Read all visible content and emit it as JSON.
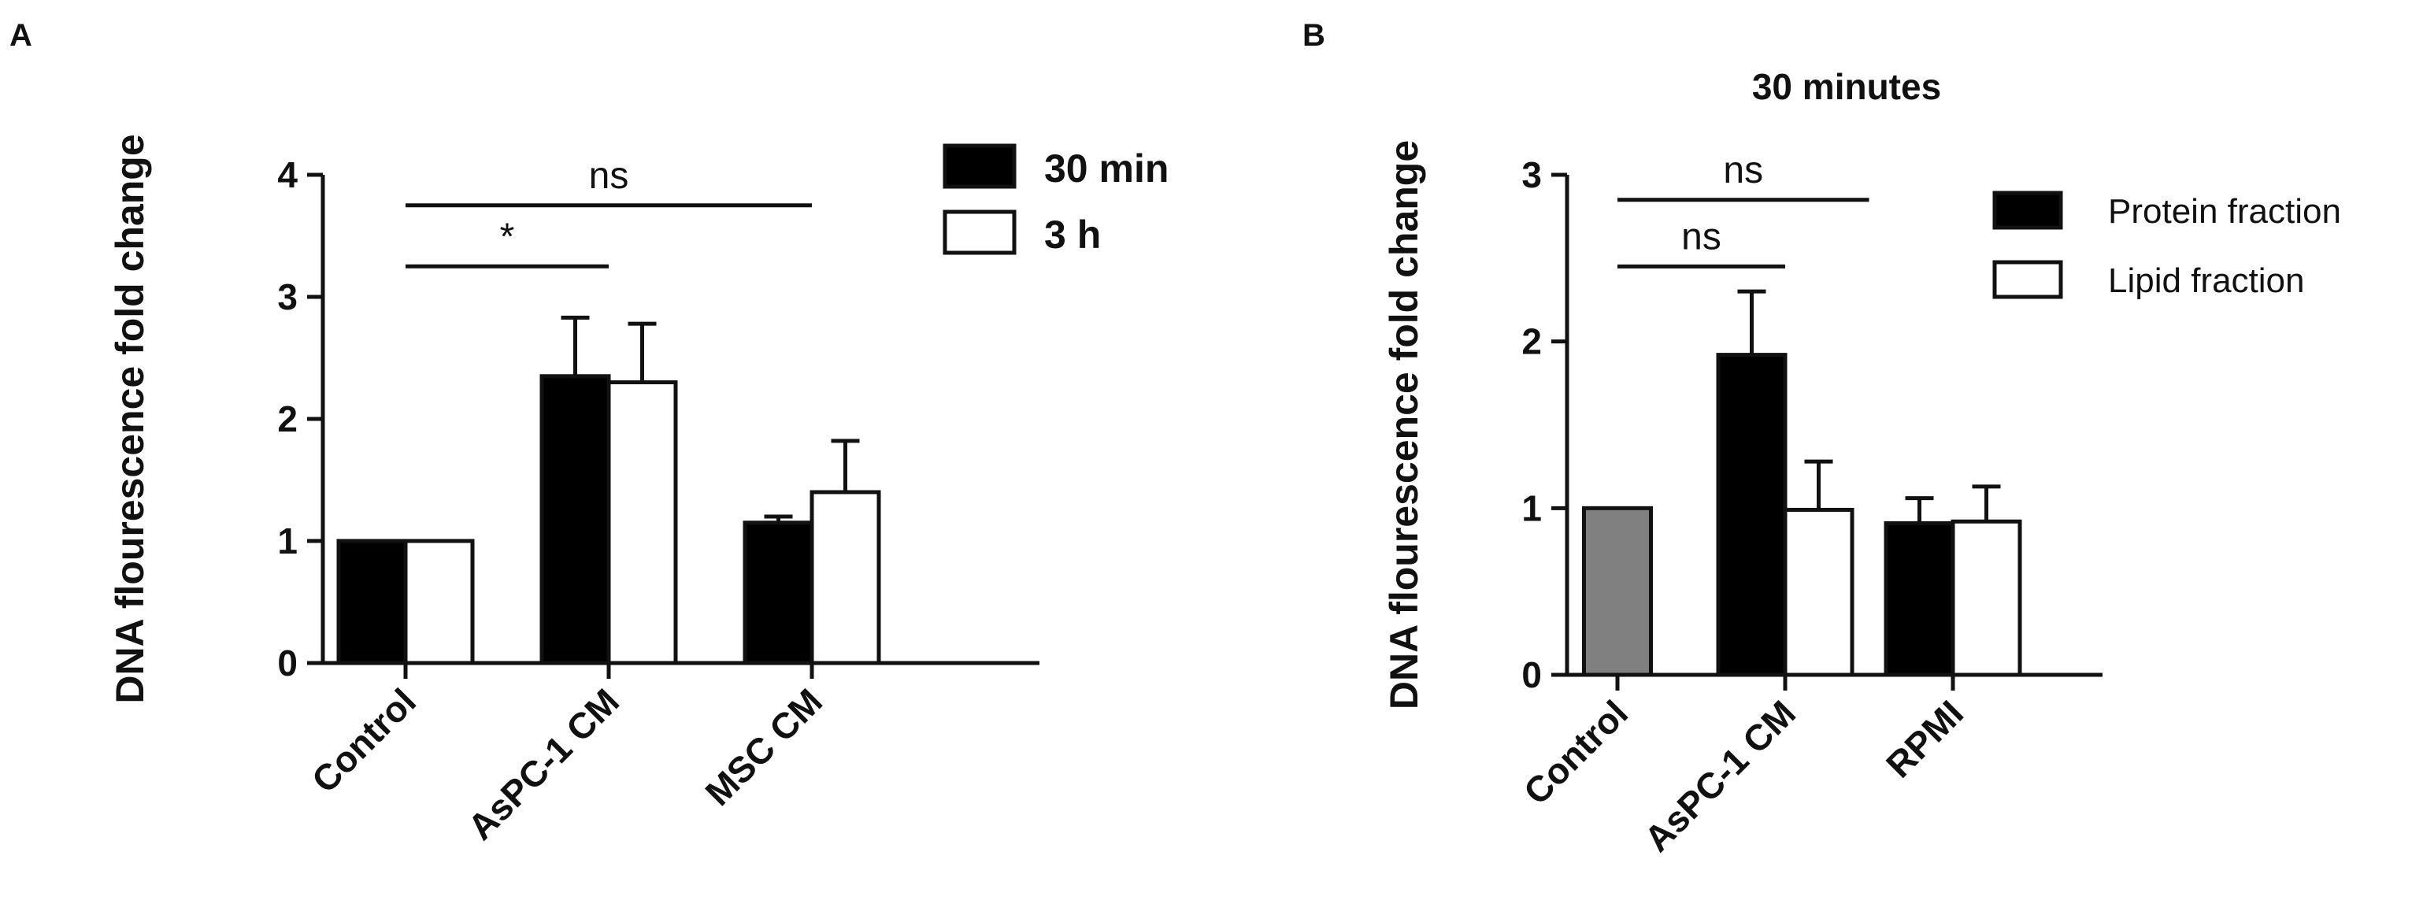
{
  "colors": {
    "black_bar": "#000000",
    "white_bar": "#ffffff",
    "control_gray": "#808080",
    "axis": "#111111"
  },
  "chart_data": [
    {
      "panel": "A",
      "type": "bar",
      "title": "",
      "xlabel": "",
      "ylabel": "DNA flourescence fold change",
      "ylim": [
        0,
        4
      ],
      "yticks": [
        0,
        1,
        2,
        3,
        4
      ],
      "categories": [
        "Control",
        "AsPC-1 CM",
        "MSC CM"
      ],
      "series": [
        {
          "name": "30 min",
          "color": "#000000",
          "values": [
            1.0,
            2.35,
            1.15
          ],
          "errors": [
            0.0,
            0.48,
            0.05
          ]
        },
        {
          "name": "3 h",
          "color": "#ffffff",
          "values": [
            1.0,
            2.3,
            1.4
          ],
          "errors": [
            0.0,
            0.48,
            0.42
          ]
        }
      ],
      "legend_position": "top-right",
      "grid": false,
      "annotations": [
        {
          "label": "*",
          "from_category": 0,
          "to_category": 1,
          "y": 3.25
        },
        {
          "label": "ns",
          "from_category": 0,
          "to_category": 2,
          "y": 3.75
        }
      ]
    },
    {
      "panel": "B",
      "type": "bar",
      "title": "30 minutes",
      "xlabel": "",
      "ylabel": "DNA flourescence fold change",
      "ylim": [
        0,
        3
      ],
      "yticks": [
        0,
        1,
        2,
        3
      ],
      "categories": [
        "Control",
        "AsPC-1 CM",
        "RPMI"
      ],
      "control_bar": {
        "value": 1.0,
        "color": "#808080"
      },
      "series": [
        {
          "name": "Protein fraction",
          "color": "#000000",
          "values": [
            null,
            1.92,
            0.91
          ],
          "errors": [
            null,
            0.38,
            0.15
          ]
        },
        {
          "name": "Lipid fraction",
          "color": "#ffffff",
          "values": [
            null,
            0.99,
            0.92
          ],
          "errors": [
            null,
            0.29,
            0.21
          ]
        }
      ],
      "legend_position": "top-right",
      "grid": false,
      "annotations": [
        {
          "label": "ns",
          "from_category": 0,
          "to_category": 1,
          "y": 2.45
        },
        {
          "label": "ns",
          "from_category": 0,
          "to_category": 1.5,
          "y": 2.85
        }
      ]
    }
  ]
}
